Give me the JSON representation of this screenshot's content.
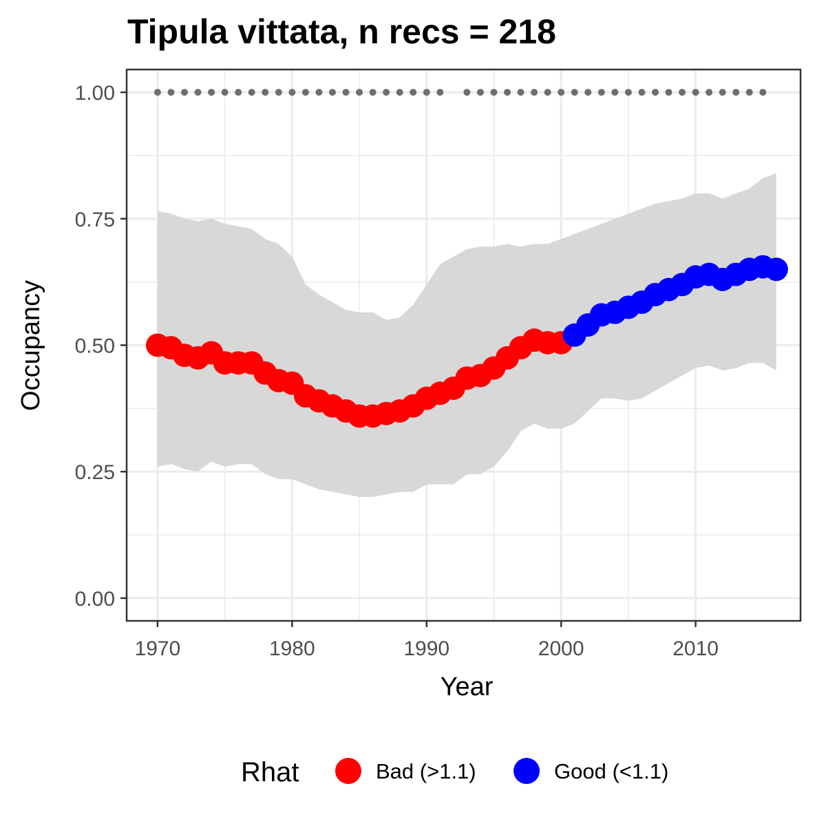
{
  "chart_data": {
    "type": "line",
    "title": "Tipula vittata, n recs = 218",
    "xlabel": "Year",
    "ylabel": "Occupancy",
    "xlim": [
      1967.7,
      2017.8
    ],
    "ylim": [
      -0.045,
      1.045
    ],
    "x_ticks": [
      1970,
      1980,
      1990,
      2000,
      2010
    ],
    "x_tick_labels": [
      "1970",
      "1980",
      "1990",
      "2000",
      "2010"
    ],
    "y_ticks": [
      0,
      0.25,
      0.5,
      0.75,
      1
    ],
    "y_tick_labels": [
      "0.00",
      "0.25",
      "0.50",
      "0.75",
      "1.00"
    ],
    "grid": true,
    "years": [
      1970,
      1971,
      1972,
      1973,
      1974,
      1975,
      1976,
      1977,
      1978,
      1979,
      1980,
      1981,
      1982,
      1983,
      1984,
      1985,
      1986,
      1987,
      1988,
      1989,
      1990,
      1991,
      1992,
      1993,
      1994,
      1995,
      1996,
      1997,
      1998,
      1999,
      2000,
      2001,
      2002,
      2003,
      2004,
      2005,
      2006,
      2007,
      2008,
      2009,
      2010,
      2011,
      2012,
      2013,
      2014,
      2015,
      2016
    ],
    "occupancy": [
      0.5,
      0.495,
      0.48,
      0.475,
      0.485,
      0.465,
      0.465,
      0.465,
      0.445,
      0.43,
      0.425,
      0.4,
      0.39,
      0.38,
      0.37,
      0.36,
      0.36,
      0.365,
      0.37,
      0.38,
      0.395,
      0.405,
      0.415,
      0.435,
      0.44,
      0.455,
      0.475,
      0.495,
      0.51,
      0.505,
      0.505,
      0.52,
      0.54,
      0.56,
      0.565,
      0.575,
      0.585,
      0.6,
      0.61,
      0.62,
      0.635,
      0.64,
      0.63,
      0.64,
      0.65,
      0.655,
      0.65
    ],
    "upper_ci": [
      0.765,
      0.76,
      0.75,
      0.745,
      0.75,
      0.74,
      0.735,
      0.73,
      0.71,
      0.7,
      0.675,
      0.62,
      0.6,
      0.585,
      0.57,
      0.565,
      0.565,
      0.55,
      0.555,
      0.58,
      0.62,
      0.66,
      0.675,
      0.69,
      0.695,
      0.695,
      0.7,
      0.695,
      0.7,
      0.7,
      0.71,
      0.72,
      0.73,
      0.74,
      0.75,
      0.76,
      0.77,
      0.78,
      0.785,
      0.79,
      0.8,
      0.8,
      0.79,
      0.8,
      0.81,
      0.83,
      0.84
    ],
    "lower_ci": [
      0.26,
      0.265,
      0.255,
      0.25,
      0.27,
      0.26,
      0.265,
      0.265,
      0.245,
      0.235,
      0.235,
      0.225,
      0.215,
      0.21,
      0.205,
      0.2,
      0.2,
      0.205,
      0.21,
      0.21,
      0.225,
      0.225,
      0.225,
      0.245,
      0.245,
      0.26,
      0.29,
      0.33,
      0.345,
      0.335,
      0.335,
      0.345,
      0.37,
      0.395,
      0.395,
      0.39,
      0.395,
      0.41,
      0.425,
      0.44,
      0.455,
      0.46,
      0.45,
      0.455,
      0.465,
      0.465,
      0.45
    ],
    "rhat_status": [
      "bad",
      "bad",
      "bad",
      "bad",
      "bad",
      "bad",
      "bad",
      "bad",
      "bad",
      "bad",
      "bad",
      "bad",
      "bad",
      "bad",
      "bad",
      "bad",
      "bad",
      "bad",
      "bad",
      "bad",
      "bad",
      "bad",
      "bad",
      "bad",
      "bad",
      "bad",
      "bad",
      "bad",
      "bad",
      "bad",
      "bad",
      "good",
      "good",
      "good",
      "good",
      "good",
      "good",
      "good",
      "good",
      "good",
      "good",
      "good",
      "good",
      "good",
      "good",
      "good",
      "good"
    ],
    "record_years": [
      1970,
      1971,
      1972,
      1973,
      1974,
      1975,
      1976,
      1977,
      1978,
      1979,
      1980,
      1981,
      1982,
      1983,
      1984,
      1985,
      1986,
      1987,
      1988,
      1989,
      1990,
      1991,
      1993,
      1994,
      1995,
      1996,
      1997,
      1998,
      1999,
      2000,
      2001,
      2002,
      2003,
      2004,
      2005,
      2006,
      2007,
      2008,
      2009,
      2010,
      2011,
      2012,
      2013,
      2014,
      2015
    ],
    "record_value": 1.0,
    "legend": {
      "title": "Rhat",
      "position": "bottom",
      "entries": [
        {
          "key": "bad",
          "label": "Bad (>1.1)",
          "color": "#ff0000"
        },
        {
          "key": "good",
          "label": "Good (<1.1)",
          "color": "#0000ff"
        }
      ]
    },
    "colors": {
      "bad": "#ff0000",
      "good": "#0000ff",
      "ribbon": "#d6d6d6",
      "record_dots": "#6e6e6e",
      "grid": "#ebebeb",
      "panel_border": "#333333"
    }
  }
}
